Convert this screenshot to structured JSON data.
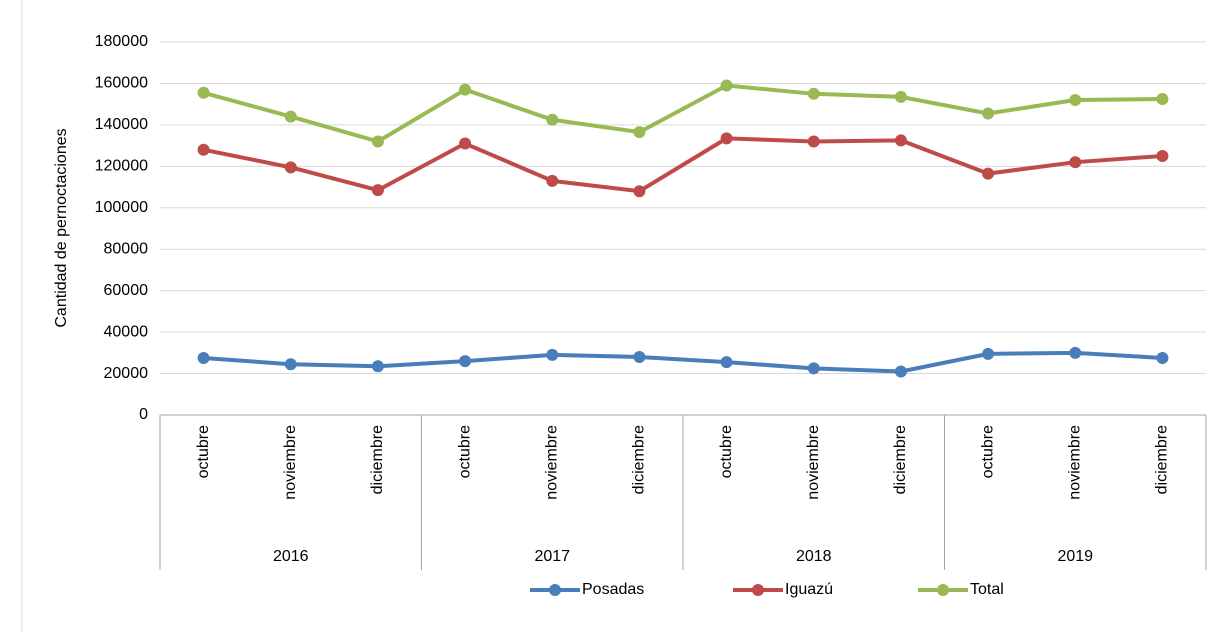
{
  "chart_data": {
    "type": "line",
    "y_label": "Cantidad de pernoctaciones",
    "categories": [
      "octubre",
      "noviembre",
      "diciembre",
      "octubre",
      "noviembre",
      "diciembre",
      "octubre",
      "noviembre",
      "diciembre",
      "octubre",
      "noviembre",
      "diciembre"
    ],
    "group_labels": [
      "2016",
      "2017",
      "2018",
      "2019"
    ],
    "series": [
      {
        "name": "Posadas",
        "color": "#4a7ebb",
        "values": [
          27500,
          24500,
          23500,
          26000,
          29000,
          28000,
          25500,
          22500,
          21000,
          29500,
          30000,
          27500
        ]
      },
      {
        "name": "Iguazú",
        "color": "#be4b48",
        "values": [
          128000,
          119500,
          108500,
          131000,
          113000,
          108000,
          133500,
          132000,
          132500,
          116500,
          122000,
          125000
        ]
      },
      {
        "name": "Total",
        "color": "#98b954",
        "values": [
          155500,
          144000,
          132000,
          157000,
          142500,
          136500,
          159000,
          155000,
          153500,
          145500,
          152000,
          152500
        ]
      }
    ],
    "ylim": [
      0,
      180000
    ],
    "yticks": [
      0,
      20000,
      40000,
      60000,
      80000,
      100000,
      120000,
      140000,
      160000,
      180000
    ],
    "grid": true,
    "legend": "bottom"
  }
}
